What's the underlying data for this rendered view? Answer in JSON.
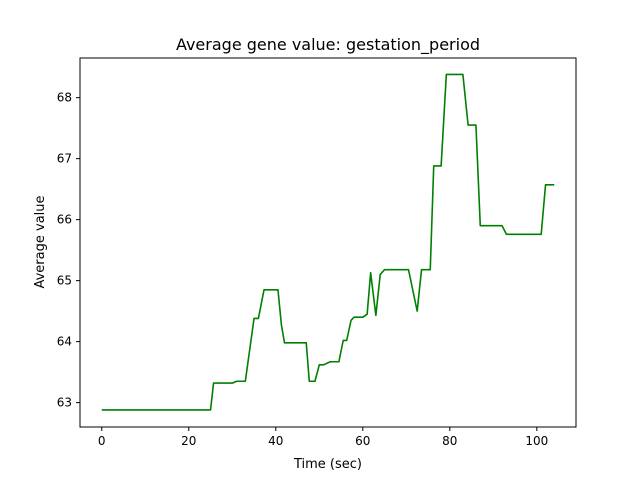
{
  "chart_data": {
    "type": "line",
    "title": "Average gene value: gestation_period",
    "xlabel": "Time (sec)",
    "ylabel": "Average value",
    "xlim": [
      -5,
      109
    ],
    "ylim": [
      62.6,
      68.65
    ],
    "xticks": [
      0,
      20,
      40,
      60,
      80,
      100
    ],
    "xtick_labels": [
      "0",
      "20",
      "40",
      "60",
      "80",
      "100"
    ],
    "yticks": [
      63,
      64,
      65,
      66,
      67,
      68
    ],
    "ytick_labels": [
      "63",
      "64",
      "65",
      "66",
      "67",
      "68"
    ],
    "grid": false,
    "series": [
      {
        "color": "#008000",
        "points": [
          [
            0,
            62.88
          ],
          [
            25,
            62.88
          ],
          [
            25.7,
            63.32
          ],
          [
            30,
            63.32
          ],
          [
            31,
            63.35
          ],
          [
            33,
            63.35
          ],
          [
            35,
            64.38
          ],
          [
            36,
            64.38
          ],
          [
            37.3,
            64.85
          ],
          [
            40.5,
            64.85
          ],
          [
            41.3,
            64.27
          ],
          [
            42,
            63.98
          ],
          [
            47,
            63.98
          ],
          [
            47.7,
            63.35
          ],
          [
            49,
            63.35
          ],
          [
            50,
            63.62
          ],
          [
            51,
            63.62
          ],
          [
            52.5,
            63.67
          ],
          [
            54.5,
            63.67
          ],
          [
            55.5,
            64.02
          ],
          [
            56.3,
            64.02
          ],
          [
            57.3,
            64.35
          ],
          [
            58,
            64.4
          ],
          [
            60,
            64.4
          ],
          [
            61,
            64.45
          ],
          [
            61.8,
            65.13
          ],
          [
            63,
            64.43
          ],
          [
            64,
            65.1
          ],
          [
            65,
            65.18
          ],
          [
            70.5,
            65.18
          ],
          [
            72.5,
            64.5
          ],
          [
            73.5,
            65.18
          ],
          [
            75.5,
            65.18
          ],
          [
            76.3,
            66.88
          ],
          [
            78,
            66.88
          ],
          [
            79.2,
            68.38
          ],
          [
            83,
            68.38
          ],
          [
            84.2,
            67.55
          ],
          [
            86,
            67.55
          ],
          [
            87,
            65.9
          ],
          [
            92,
            65.9
          ],
          [
            93,
            65.76
          ],
          [
            101,
            65.76
          ],
          [
            102,
            66.57
          ],
          [
            104,
            66.57
          ]
        ]
      }
    ]
  }
}
